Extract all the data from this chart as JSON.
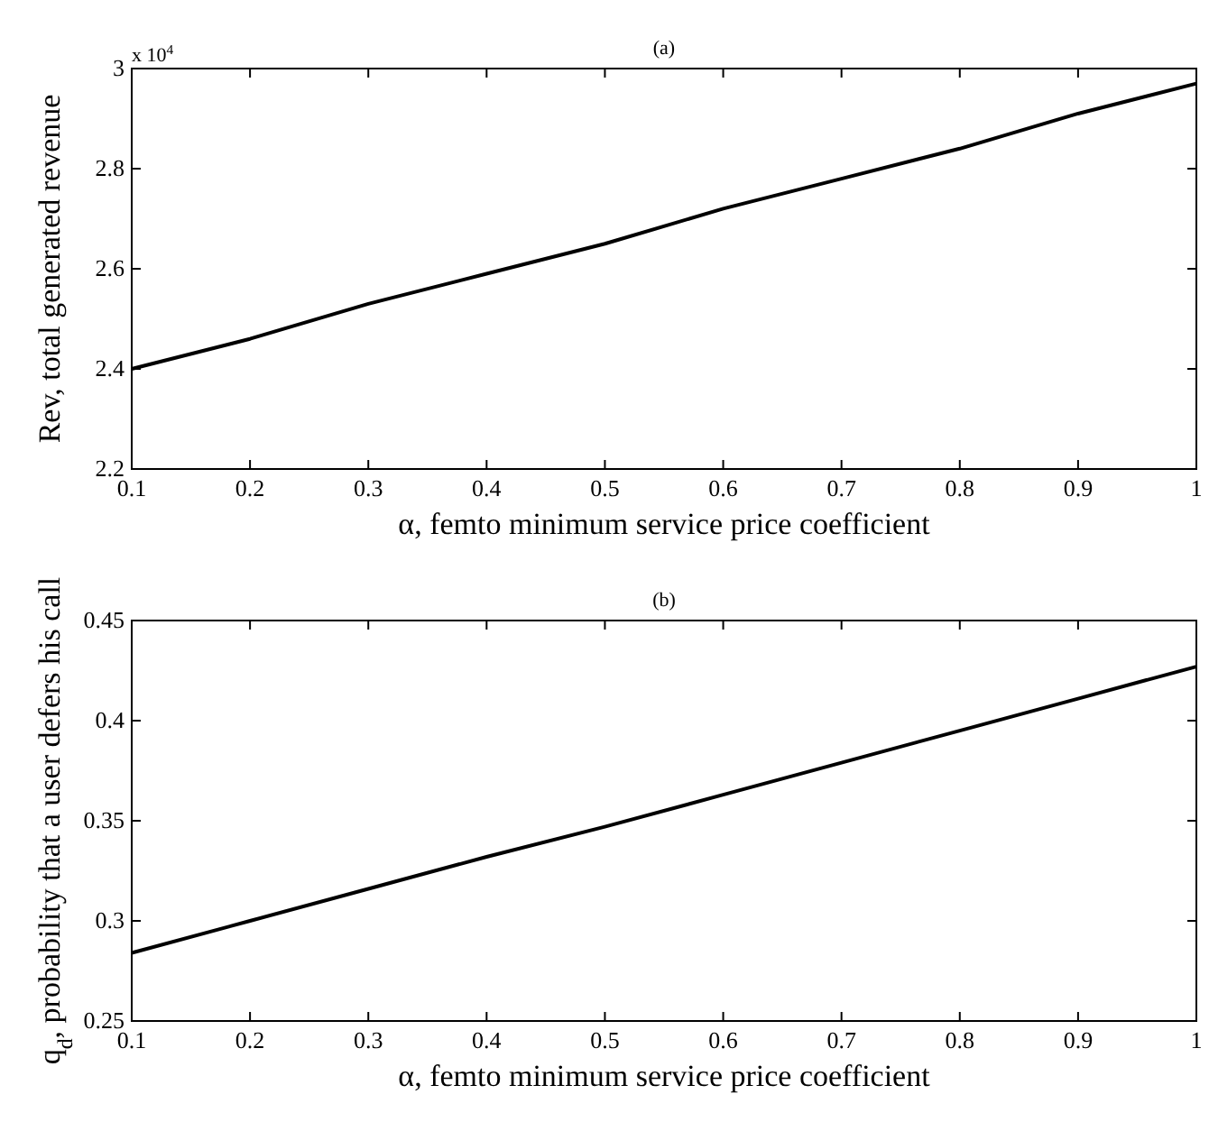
{
  "chart_data": [
    {
      "type": "line",
      "title": "(a)",
      "xlabel": "α, femto minimum service price coefficient",
      "ylabel": "Rev, total generated revenue",
      "annotations": [
        "x 10$^{4}$"
      ],
      "x": [
        0.1,
        0.2,
        0.3,
        0.4,
        0.5,
        0.6,
        0.7,
        0.8,
        0.9,
        1
      ],
      "series": [
        {
          "color": "#000000",
          "values": [
            2.4,
            2.46,
            2.53,
            2.59,
            2.65,
            2.72,
            2.78,
            2.84,
            2.91,
            2.97
          ]
        }
      ],
      "xlim": [
        0.1,
        1
      ],
      "xticks": [
        0.1,
        0.2,
        0.3,
        0.4,
        0.5,
        0.6,
        0.7,
        0.8,
        0.9,
        1
      ],
      "ylim": [
        2.2,
        3
      ],
      "yticks": [
        2.2,
        2.4,
        2.6,
        2.8,
        3
      ],
      "grid": false,
      "marker": "none",
      "line_style": "solid"
    },
    {
      "type": "line",
      "title": "(b)",
      "xlabel": "α, femto minimum service price coefficient",
      "ylabel": "q$_{d}$, probability that a user defers his call",
      "x": [
        0.1,
        0.2,
        0.3,
        0.4,
        0.5,
        0.6,
        0.7,
        0.8,
        0.9,
        1
      ],
      "series": [
        {
          "color": "#000000",
          "values": [
            0.284,
            0.3,
            0.316,
            0.332,
            0.347,
            0.363,
            0.379,
            0.395,
            0.411,
            0.427
          ]
        }
      ],
      "xlim": [
        0.1,
        1
      ],
      "xticks": [
        0.1,
        0.2,
        0.3,
        0.4,
        0.5,
        0.6,
        0.7,
        0.8,
        0.9,
        1
      ],
      "ylim": [
        0.25,
        0.45
      ],
      "yticks": [
        0.25,
        0.3,
        0.35,
        0.4,
        0.45
      ],
      "grid": false,
      "marker": "none",
      "line_style": "solid"
    }
  ]
}
